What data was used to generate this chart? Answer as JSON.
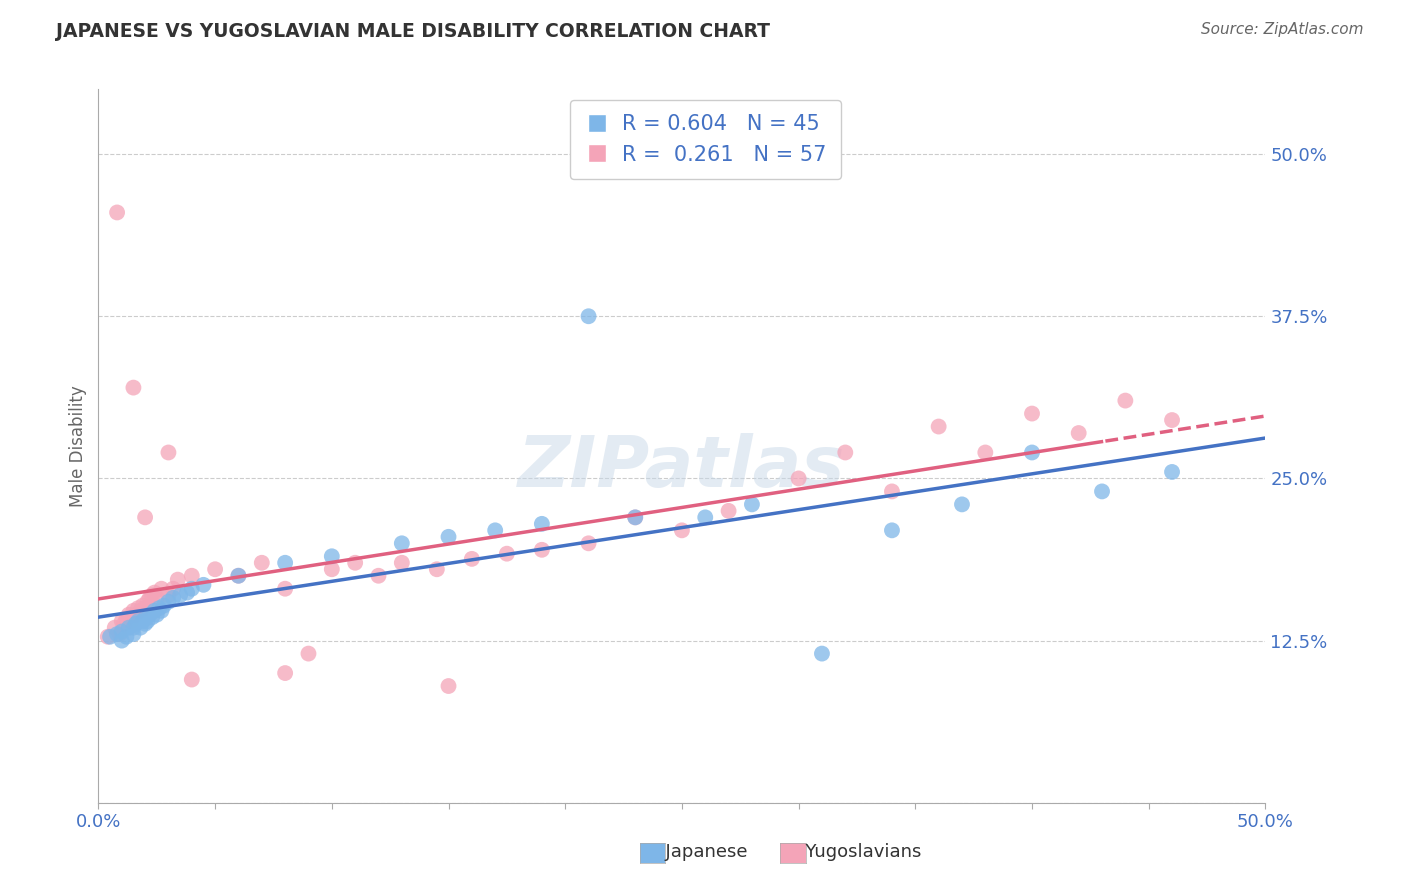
{
  "title": "JAPANESE VS YUGOSLAVIAN MALE DISABILITY CORRELATION CHART",
  "source": "Source: ZipAtlas.com",
  "ylabel": "Male Disability",
  "xlim": [
    0,
    0.5
  ],
  "ylim": [
    0.0,
    0.55
  ],
  "xticks": [
    0.0,
    0.05,
    0.1,
    0.15,
    0.2,
    0.25,
    0.3,
    0.35,
    0.4,
    0.45,
    0.5
  ],
  "yticks": [
    0.0,
    0.125,
    0.25,
    0.375,
    0.5
  ],
  "ytick_labels": [
    "",
    "12.5%",
    "25.0%",
    "37.5%",
    "50.0%"
  ],
  "japanese_color": "#7EB6E8",
  "japanese_line_color": "#4472C4",
  "yugoslavian_color": "#F4A4B8",
  "yugoslavian_line_color": "#E06080",
  "japanese_R": 0.604,
  "japanese_N": 45,
  "yugoslavian_R": 0.261,
  "yugoslavian_N": 57,
  "legend_text_color": "#4472C4",
  "background_color": "#FFFFFF",
  "grid_color": "#CCCCCC",
  "japanese_x": [
    0.005,
    0.008,
    0.01,
    0.01,
    0.012,
    0.013,
    0.015,
    0.015,
    0.016,
    0.017,
    0.018,
    0.019,
    0.02,
    0.02,
    0.021,
    0.022,
    0.023,
    0.024,
    0.025,
    0.026,
    0.027,
    0.028,
    0.03,
    0.032,
    0.035,
    0.038,
    0.04,
    0.045,
    0.06,
    0.08,
    0.1,
    0.13,
    0.15,
    0.17,
    0.19,
    0.21,
    0.23,
    0.26,
    0.28,
    0.31,
    0.34,
    0.37,
    0.4,
    0.43,
    0.46
  ],
  "japanese_y": [
    0.128,
    0.13,
    0.125,
    0.132,
    0.128,
    0.135,
    0.13,
    0.135,
    0.138,
    0.14,
    0.135,
    0.14,
    0.138,
    0.142,
    0.14,
    0.145,
    0.143,
    0.148,
    0.145,
    0.15,
    0.148,
    0.152,
    0.155,
    0.158,
    0.16,
    0.162,
    0.165,
    0.168,
    0.175,
    0.185,
    0.19,
    0.2,
    0.205,
    0.21,
    0.215,
    0.375,
    0.22,
    0.22,
    0.23,
    0.115,
    0.21,
    0.23,
    0.27,
    0.24,
    0.255
  ],
  "yugoslavian_x": [
    0.004,
    0.007,
    0.009,
    0.01,
    0.011,
    0.012,
    0.013,
    0.014,
    0.015,
    0.016,
    0.017,
    0.018,
    0.019,
    0.02,
    0.021,
    0.022,
    0.023,
    0.024,
    0.025,
    0.027,
    0.03,
    0.032,
    0.034,
    0.04,
    0.05,
    0.06,
    0.07,
    0.08,
    0.09,
    0.1,
    0.11,
    0.12,
    0.13,
    0.145,
    0.16,
    0.175,
    0.19,
    0.21,
    0.23,
    0.25,
    0.27,
    0.3,
    0.32,
    0.34,
    0.36,
    0.38,
    0.4,
    0.42,
    0.44,
    0.46,
    0.008,
    0.015,
    0.02,
    0.03,
    0.04,
    0.08,
    0.15
  ],
  "yugoslavian_y": [
    0.128,
    0.135,
    0.13,
    0.14,
    0.138,
    0.142,
    0.145,
    0.14,
    0.148,
    0.145,
    0.15,
    0.148,
    0.152,
    0.15,
    0.155,
    0.158,
    0.16,
    0.162,
    0.158,
    0.165,
    0.16,
    0.165,
    0.172,
    0.175,
    0.18,
    0.175,
    0.185,
    0.165,
    0.115,
    0.18,
    0.185,
    0.175,
    0.185,
    0.18,
    0.188,
    0.192,
    0.195,
    0.2,
    0.22,
    0.21,
    0.225,
    0.25,
    0.27,
    0.24,
    0.29,
    0.27,
    0.3,
    0.285,
    0.31,
    0.295,
    0.455,
    0.32,
    0.22,
    0.27,
    0.095,
    0.1,
    0.09
  ]
}
